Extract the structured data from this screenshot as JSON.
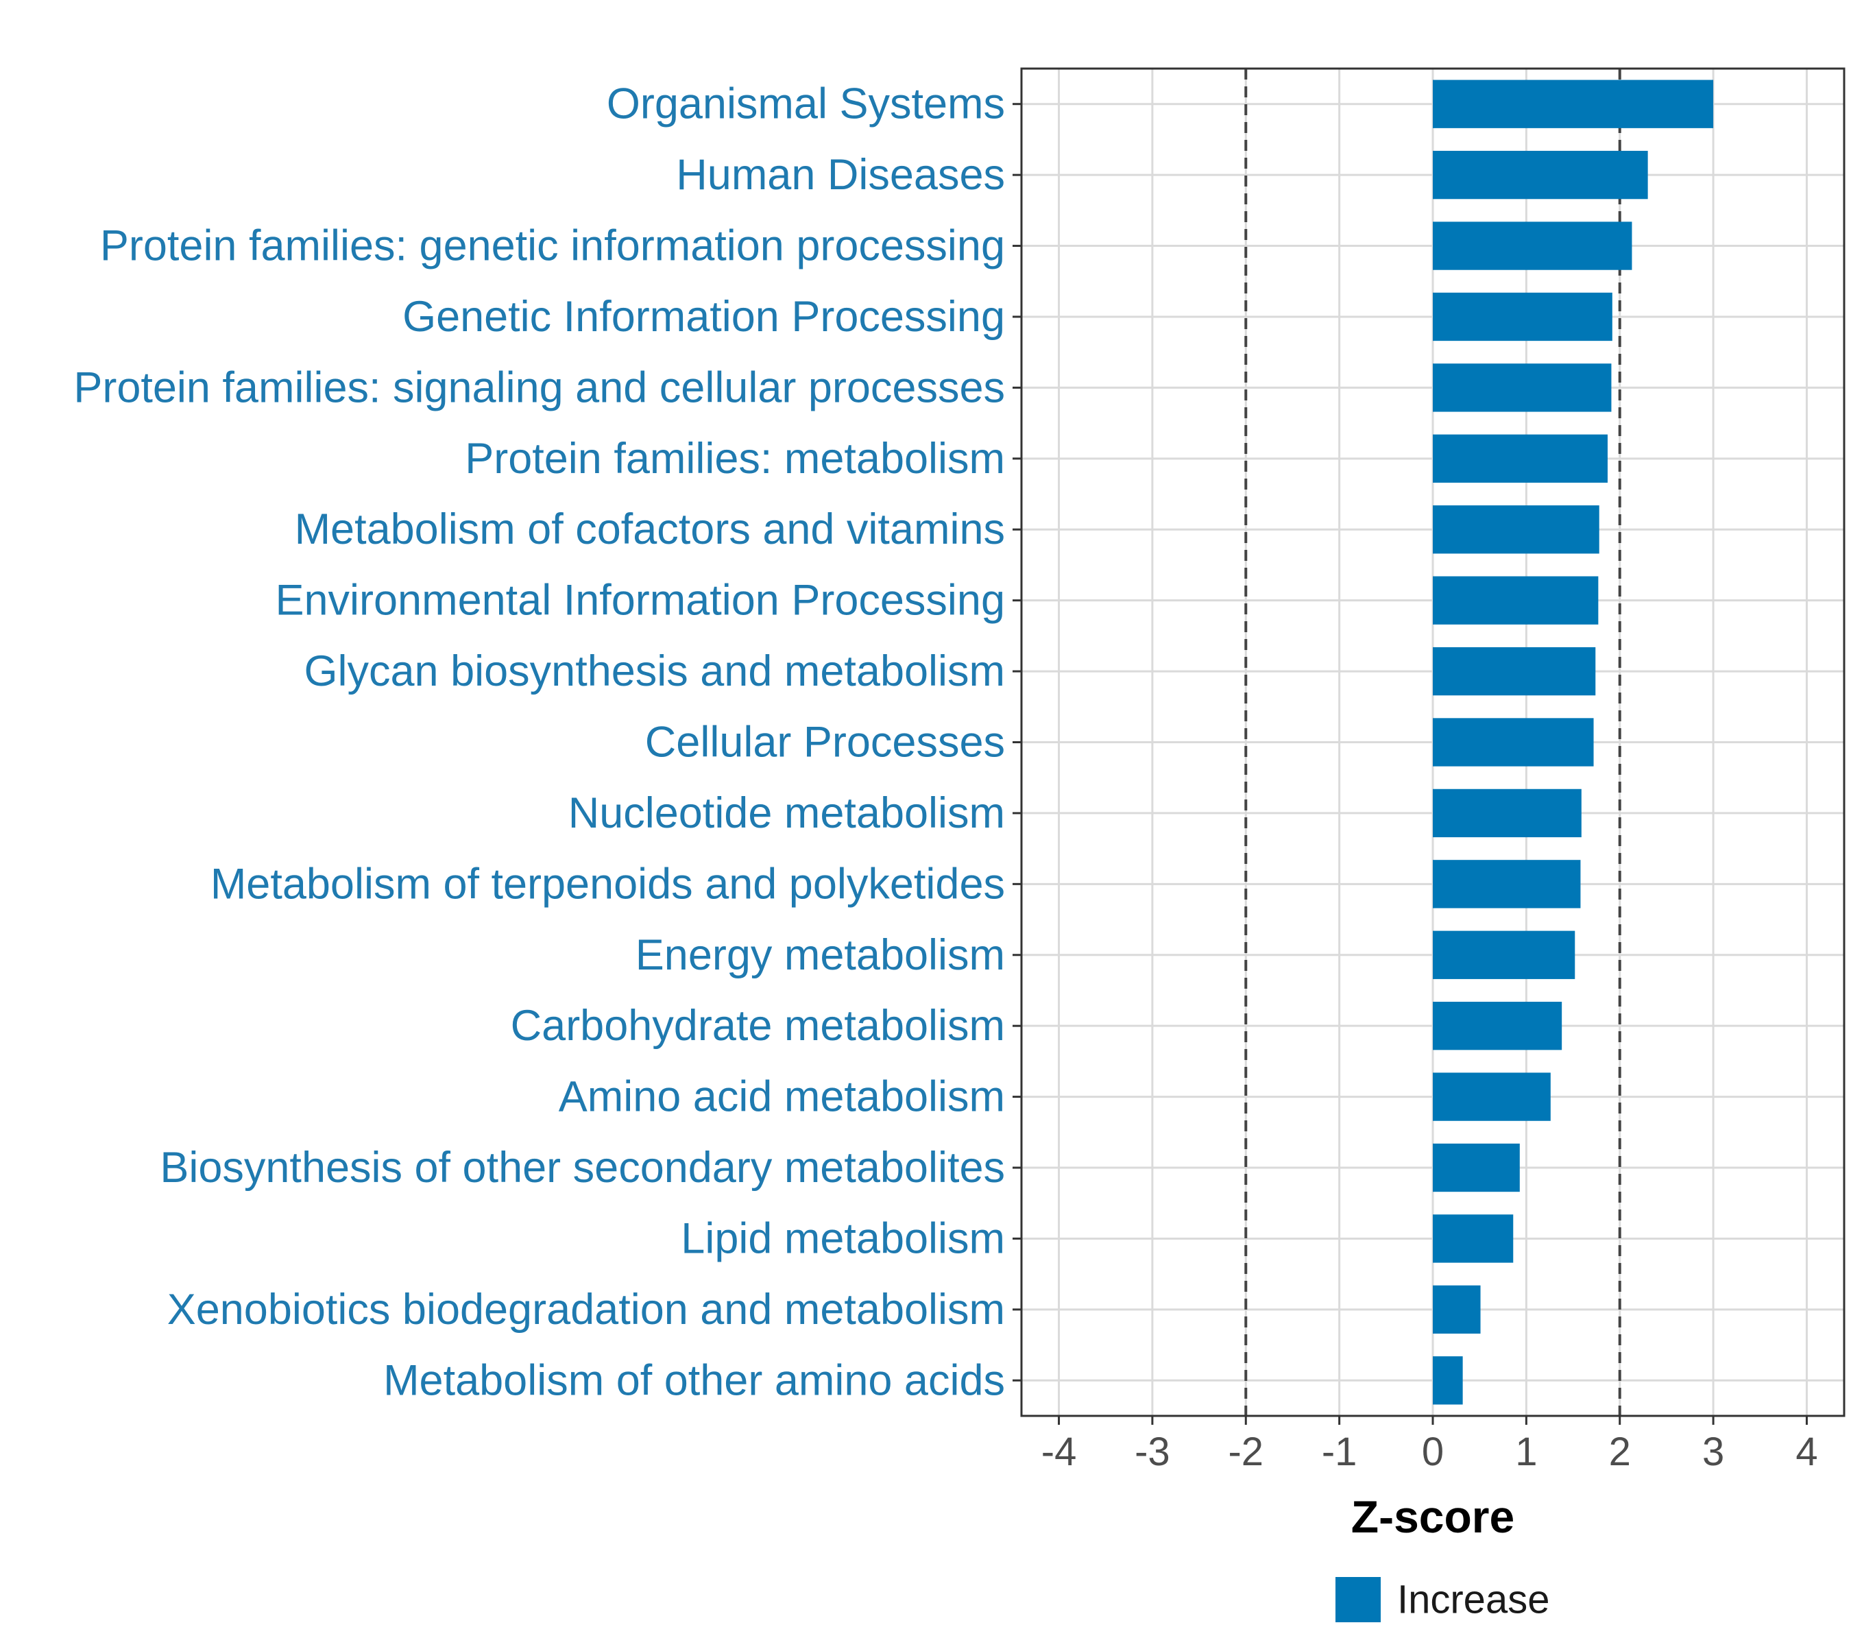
{
  "chart_data": {
    "type": "bar",
    "orientation": "horizontal",
    "categories": [
      "Organismal Systems",
      "Human Diseases",
      "Protein families: genetic information processing",
      "Genetic Information Processing",
      "Protein families: signaling and cellular processes",
      "Protein families: metabolism",
      "Metabolism of cofactors and vitamins",
      "Environmental Information Processing",
      "Glycan biosynthesis and metabolism",
      "Cellular Processes",
      "Nucleotide metabolism",
      "Metabolism of terpenoids and polyketides",
      "Energy metabolism",
      "Carbohydrate metabolism",
      "Amino acid metabolism",
      "Biosynthesis of other secondary metabolites",
      "Lipid metabolism",
      "Xenobiotics biodegradation and metabolism",
      "Metabolism of other amino acids"
    ],
    "values": [
      3.0,
      2.3,
      2.13,
      1.92,
      1.91,
      1.87,
      1.78,
      1.77,
      1.74,
      1.72,
      1.59,
      1.58,
      1.52,
      1.38,
      1.26,
      0.93,
      0.86,
      0.51,
      0.32
    ],
    "series": [
      {
        "name": "Increase",
        "color": "#0077B6"
      }
    ],
    "xlabel": "Z-score",
    "ylabel": "",
    "xlim": [
      -4.4,
      4.4
    ],
    "xticks": [
      -4,
      -3,
      -2,
      -1,
      0,
      1,
      2,
      3,
      4
    ],
    "xtick_labels": [
      "-4",
      "-3",
      "-2",
      "-1",
      "0",
      "1",
      "2",
      "3",
      "4"
    ],
    "reference_lines": [
      -2,
      2
    ],
    "grid": true,
    "legend_position": "bottom",
    "label_color": "#1F7AB0"
  }
}
